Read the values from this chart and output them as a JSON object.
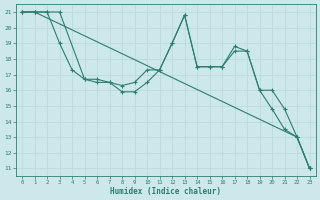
{
  "xlabel": "Humidex (Indice chaleur)",
  "background_color": "#cde8ea",
  "grid_color": "#b8d8da",
  "line_color": "#2e7d6e",
  "xlim": [
    -0.5,
    23.5
  ],
  "ylim": [
    10.5,
    21.5
  ],
  "yticks": [
    11,
    12,
    13,
    14,
    15,
    16,
    17,
    18,
    19,
    20,
    21
  ],
  "xticks": [
    0,
    1,
    2,
    3,
    4,
    5,
    6,
    7,
    8,
    9,
    10,
    11,
    12,
    13,
    14,
    15,
    16,
    17,
    18,
    19,
    20,
    21,
    22,
    23
  ],
  "line1_x": [
    0,
    1,
    2,
    3,
    4,
    5,
    6,
    7,
    8,
    9,
    10,
    11,
    12,
    13,
    14,
    15,
    16,
    17,
    18,
    19,
    20,
    21,
    22,
    23
  ],
  "line1_y": [
    21,
    21,
    21,
    19,
    17.3,
    16.7,
    16.7,
    16.5,
    15.9,
    15.9,
    16.5,
    17.3,
    19.0,
    20.8,
    17.5,
    17.5,
    17.5,
    18.8,
    18.5,
    16.0,
    14.8,
    13.5,
    13.0,
    11.0
  ],
  "line2_x": [
    0,
    1,
    2,
    3,
    5,
    6,
    7,
    8,
    9,
    10,
    11,
    12,
    13,
    14,
    15,
    16,
    17,
    18,
    19,
    20,
    21,
    22,
    23
  ],
  "line2_y": [
    21,
    21,
    21,
    21,
    16.7,
    16.5,
    16.5,
    16.3,
    16.5,
    17.3,
    17.3,
    19.0,
    20.8,
    17.5,
    17.5,
    17.5,
    18.5,
    18.5,
    16.0,
    16.0,
    14.8,
    13.0,
    11.0
  ],
  "line3_x": [
    0,
    1,
    22,
    23
  ],
  "line3_y": [
    21,
    21,
    13.0,
    11.0
  ]
}
